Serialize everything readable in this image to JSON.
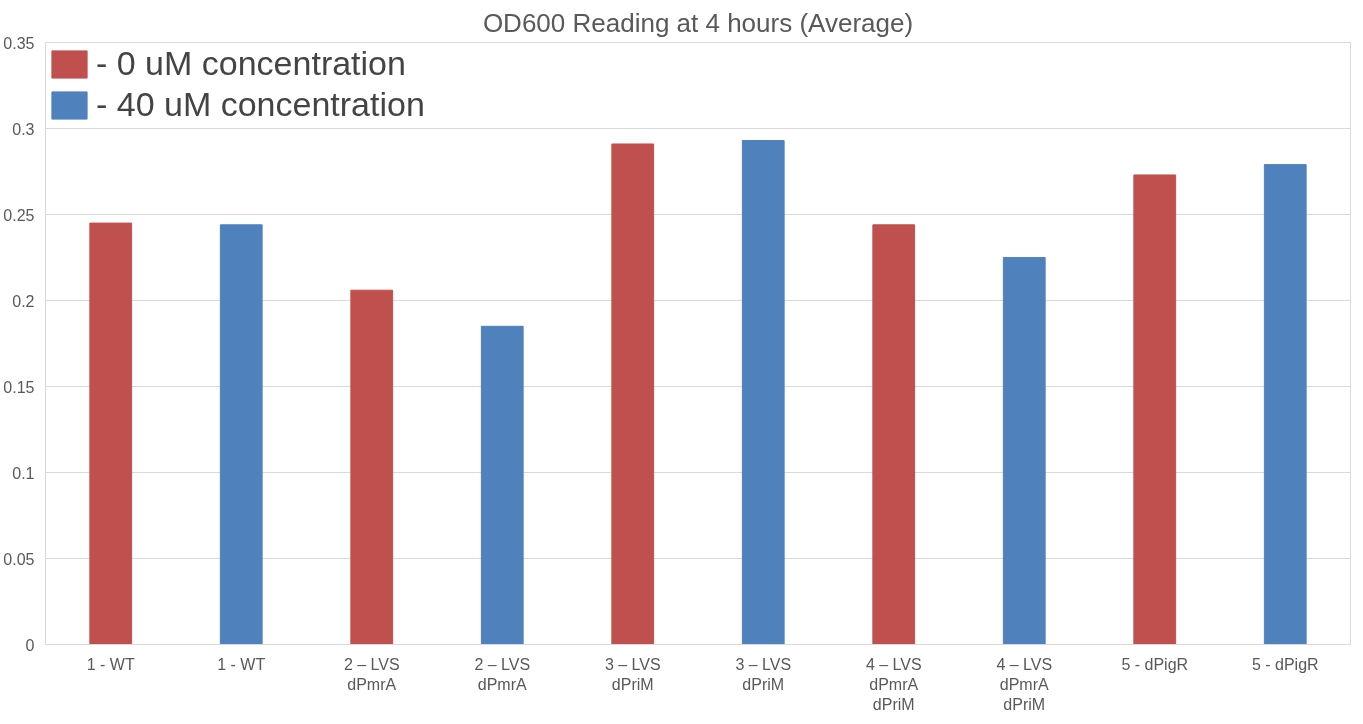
{
  "chart_data": {
    "type": "bar",
    "title": "OD600 Reading at 4 hours (Average)",
    "categories": [
      "1 - WT",
      "1 - WT",
      "2 – LVS\ndPmrA",
      "2 – LVS\ndPmrA",
      "3 – LVS\ndPriM",
      "3 – LVS\ndPriM",
      "4 – LVS\ndPmrA\ndPriM",
      "4 – LVS\ndPmrA\ndPriM",
      "5 - dPigR",
      "5 - dPigR"
    ],
    "series": [
      {
        "name": "- 0 uM concentration",
        "color": "#c0504d",
        "values": [
          0.245,
          null,
          0.206,
          null,
          0.291,
          null,
          0.244,
          null,
          0.273,
          null
        ]
      },
      {
        "name": "- 40 uM concentration",
        "color": "#4f81bd",
        "values": [
          null,
          0.244,
          null,
          0.185,
          null,
          0.293,
          null,
          0.225,
          null,
          0.279
        ]
      }
    ],
    "ylim": [
      0,
      0.35
    ],
    "yticks": [
      0,
      0.05,
      0.1,
      0.15,
      0.2,
      0.25,
      0.3,
      0.35
    ],
    "grid": "y",
    "legend": "top left"
  }
}
